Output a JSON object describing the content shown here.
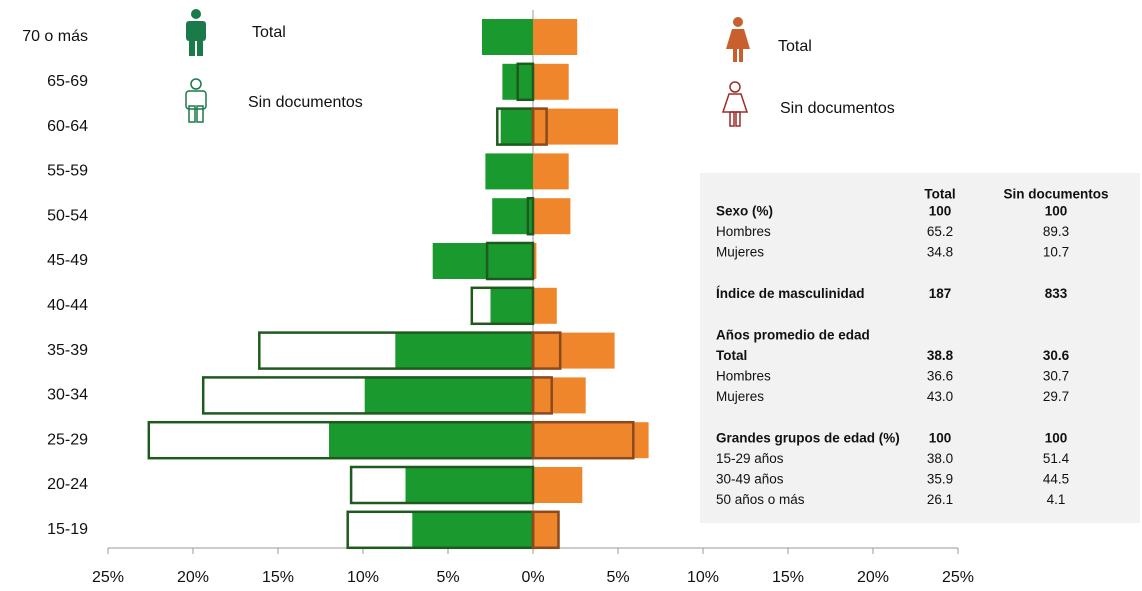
{
  "chart_data": {
    "type": "bar",
    "orientation": "horizontal",
    "categories": [
      "70 o más",
      "65-69",
      "60-64",
      "55-59",
      "50-54",
      "45-49",
      "40-44",
      "35-39",
      "30-34",
      "25-29",
      "20-24",
      "15-19"
    ],
    "series": [
      {
        "name": "Total",
        "side": "left",
        "style": "fill",
        "color": "#1a9a2e",
        "values": [
          3.0,
          1.8,
          1.9,
          2.8,
          2.4,
          5.9,
          2.5,
          8.1,
          9.9,
          12.0,
          7.5,
          7.1
        ]
      },
      {
        "name": "Sin documentos",
        "side": "left",
        "style": "outline",
        "color": "#1e5a1e",
        "values": [
          0,
          0.9,
          2.1,
          0,
          0.3,
          2.7,
          3.6,
          16.1,
          19.4,
          22.6,
          10.7,
          10.9
        ]
      },
      {
        "name": "Total",
        "side": "right",
        "style": "fill",
        "color": "#ef862b",
        "values": [
          2.6,
          2.1,
          5.0,
          2.1,
          2.2,
          0.2,
          1.4,
          4.8,
          3.1,
          6.8,
          2.9,
          1.5
        ]
      },
      {
        "name": "Sin documentos",
        "side": "right",
        "style": "outline",
        "color": "#8a4a1e",
        "values": [
          0,
          0,
          0.8,
          0,
          0,
          0,
          0,
          1.6,
          1.1,
          5.9,
          0,
          1.5
        ]
      }
    ],
    "xlim": [
      -25,
      25
    ],
    "xticks": [
      {
        "value": -25,
        "label": "25%"
      },
      {
        "value": -20,
        "label": "20%"
      },
      {
        "value": -15,
        "label": "15%"
      },
      {
        "value": -10,
        "label": "10%"
      },
      {
        "value": -5,
        "label": "5%"
      },
      {
        "value": 0,
        "label": "0%"
      },
      {
        "value": 5,
        "label": "5%"
      },
      {
        "value": 10,
        "label": "10%"
      },
      {
        "value": 15,
        "label": "15%"
      },
      {
        "value": 20,
        "label": "20%"
      },
      {
        "value": 25,
        "label": "25%"
      }
    ]
  },
  "table": {
    "columns": [
      "Total",
      "Sin documentos"
    ],
    "groups": [
      [
        {
          "cells": [
            "Sexo (%)",
            "100",
            "100"
          ],
          "bold": true
        },
        {
          "cells": [
            "Hombres",
            "65.2",
            "89.3"
          ]
        },
        {
          "cells": [
            "Mujeres",
            "34.8",
            "10.7"
          ]
        }
      ],
      [
        {
          "cells": [
            "Índice de masculinidad",
            "187",
            "833"
          ],
          "bold": true
        }
      ],
      [
        {
          "cells": [
            "Años promedio de edad"
          ],
          "bold": true
        },
        {
          "cells": [
            "Total",
            "38.8",
            "30.6"
          ],
          "bold": true
        },
        {
          "cells": [
            "Hombres",
            "36.6",
            "30.7"
          ]
        },
        {
          "cells": [
            "Mujeres",
            "43.0",
            "29.7"
          ]
        }
      ],
      [
        {
          "cells": [
            "Grandes grupos de edad (%)",
            "100",
            "100"
          ],
          "bold": true
        },
        {
          "cells": [
            "15-29 años",
            "38.0",
            "51.4"
          ]
        },
        {
          "cells": [
            "30-49 años",
            "35.9",
            "44.5"
          ]
        },
        {
          "cells": [
            "50 años o más",
            "26.1",
            "4.1"
          ]
        }
      ]
    ]
  }
}
